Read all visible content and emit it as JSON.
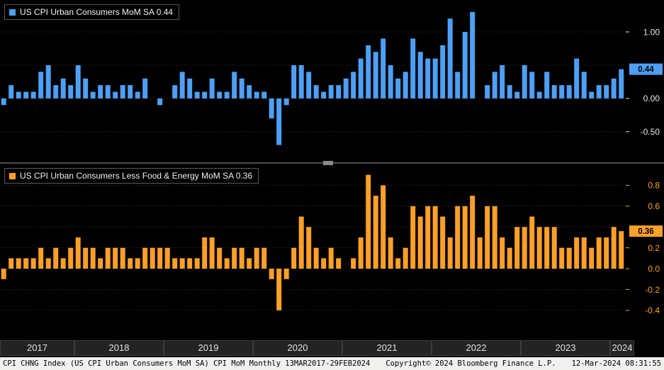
{
  "chart_data": [
    {
      "type": "bar",
      "title": "US CPI Urban Consumers MoM SA",
      "legend_label": "US CPI Urban Consumers MoM SA 0.44",
      "last_value": 0.44,
      "color": "#4da0f5",
      "axis_color": "#e8e8e8",
      "x_start": "MAR2017",
      "x_end": "FEB2024",
      "frequency": "Monthly",
      "ylim": [
        -0.96,
        1.48
      ],
      "gridlines": [
        1.0,
        0.5,
        0.0,
        -0.5
      ],
      "yticks": [
        {
          "label": "1.00",
          "value": 1.0
        },
        {
          "label": "0.44",
          "value": 0.44,
          "badge": true
        },
        {
          "label": "0.00",
          "value": 0.0
        },
        {
          "label": "-0.50",
          "value": -0.5
        }
      ],
      "values": [
        -0.1,
        0.2,
        0.1,
        0.1,
        0.1,
        0.4,
        0.5,
        0.2,
        0.3,
        0.2,
        0.5,
        0.3,
        0.1,
        0.2,
        0.2,
        0.1,
        0.2,
        0.2,
        0.1,
        0.3,
        0.0,
        -0.1,
        0.0,
        0.2,
        0.4,
        0.3,
        0.1,
        0.1,
        0.3,
        0.1,
        0.1,
        0.4,
        0.3,
        0.2,
        0.1,
        0.1,
        -0.3,
        -0.7,
        -0.1,
        0.5,
        0.5,
        0.4,
        0.2,
        0.1,
        0.2,
        0.2,
        0.3,
        0.4,
        0.6,
        0.8,
        0.7,
        0.9,
        0.5,
        0.3,
        0.4,
        0.9,
        0.7,
        0.6,
        0.6,
        0.8,
        1.2,
        0.4,
        1.0,
        1.3,
        0.0,
        0.2,
        0.4,
        0.5,
        0.2,
        0.1,
        0.5,
        0.4,
        0.1,
        0.4,
        0.2,
        0.2,
        0.2,
        0.6,
        0.4,
        0.1,
        0.2,
        0.2,
        0.3,
        0.44
      ]
    },
    {
      "type": "bar",
      "title": "US CPI Urban Consumers Less Food & Energy MoM SA",
      "legend_label": "US CPI Urban Consumers Less Food & Energy MoM SA 0.36",
      "last_value": 0.36,
      "color": "#ffa028",
      "axis_color": "#ffa028",
      "x_start": "MAR2017",
      "x_end": "FEB2024",
      "frequency": "Monthly",
      "ylim": [
        -0.673,
        1.007
      ],
      "gridlines": [
        0.8,
        0.6,
        0.4,
        0.2,
        0.0,
        -0.2,
        -0.4
      ],
      "yticks": [
        {
          "label": "0.8",
          "value": 0.8
        },
        {
          "label": "0.6",
          "value": 0.6
        },
        {
          "label": "0.36",
          "value": 0.36,
          "badge": true
        },
        {
          "label": "0.2",
          "value": 0.2
        },
        {
          "label": "0.0",
          "value": 0.0
        },
        {
          "label": "-0.2",
          "value": -0.2
        },
        {
          "label": "-0.4",
          "value": -0.4
        }
      ],
      "values": [
        -0.1,
        0.1,
        0.1,
        0.1,
        0.1,
        0.2,
        0.1,
        0.2,
        0.1,
        0.2,
        0.3,
        0.2,
        0.2,
        0.1,
        0.2,
        0.2,
        0.2,
        0.1,
        0.1,
        0.2,
        0.2,
        0.2,
        0.2,
        0.1,
        0.1,
        0.1,
        0.1,
        0.3,
        0.3,
        0.2,
        0.1,
        0.2,
        0.2,
        0.1,
        0.2,
        0.2,
        -0.1,
        -0.4,
        -0.1,
        0.2,
        0.5,
        0.4,
        0.2,
        0.1,
        0.2,
        0.1,
        0.0,
        0.1,
        0.3,
        0.9,
        0.7,
        0.8,
        0.3,
        0.1,
        0.2,
        0.6,
        0.5,
        0.6,
        0.6,
        0.5,
        0.3,
        0.6,
        0.6,
        0.7,
        0.3,
        0.6,
        0.6,
        0.3,
        0.2,
        0.4,
        0.4,
        0.5,
        0.4,
        0.4,
        0.4,
        0.2,
        0.2,
        0.3,
        0.3,
        0.2,
        0.3,
        0.3,
        0.4,
        0.36
      ]
    }
  ],
  "legend": {
    "top": "US CPI Urban Consumers MoM SA 0.44",
    "bottom": "US CPI Urban Consumers Less Food & Energy MoM SA 0.36"
  },
  "x_axis": {
    "years": [
      {
        "label": "2017",
        "months": 10
      },
      {
        "label": "2018",
        "months": 12
      },
      {
        "label": "2019",
        "months": 12
      },
      {
        "label": "2020",
        "months": 12
      },
      {
        "label": "2021",
        "months": 12
      },
      {
        "label": "2022",
        "months": 12
      },
      {
        "label": "2023",
        "months": 12
      },
      {
        "label": "2024",
        "months": 2
      }
    ]
  },
  "status_bar": {
    "left": "CPI CHNG Index (US CPI Urban Consumers MoM SA) CPI MoM  Monthly 13MAR2017-29FEB2024",
    "center": "Copyright© 2024 Bloomberg Finance L.P.",
    "right": "12-Mar-2024 08:31:55"
  }
}
